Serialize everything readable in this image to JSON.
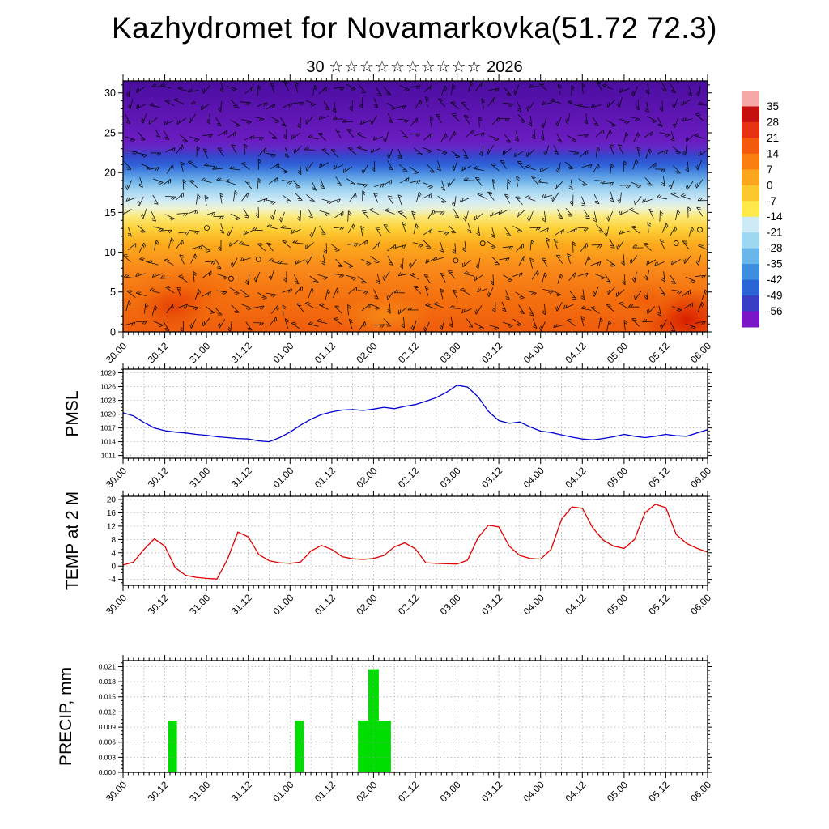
{
  "page": {
    "title": "Kazhydromet for Novamarkovka(51.72 72.3)",
    "subtitle_prefix": "30",
    "subtitle_stars": "☆☆☆☆☆☆☆☆☆☆",
    "subtitle_suffix": "2026"
  },
  "x_axis": {
    "labels": [
      "30.00",
      "30.12",
      "31.00",
      "31.12",
      "01.00",
      "01.12",
      "02.00",
      "02.12",
      "03.00",
      "03.12",
      "04.00",
      "04.12",
      "05.00",
      "05.12",
      "06.00"
    ],
    "major_step_hours": 12,
    "minor_step_hours": 1.5,
    "total_hours": 168
  },
  "chart_data": [
    {
      "type": "heatmap",
      "name": "wind-temperature-profile",
      "description": "vertical profile colored by temperature with wind barbs",
      "ylim": [
        0,
        31.5
      ],
      "yticks": [
        0,
        5,
        10,
        15,
        20,
        25,
        30
      ],
      "profile_heights": [
        0,
        5,
        10,
        13,
        15,
        17,
        19,
        21,
        23,
        25,
        31
      ],
      "profile_values": [
        11,
        6,
        0,
        -5,
        -10,
        -16,
        -24,
        -33,
        -44,
        -50,
        -57
      ],
      "colorbar_ticks": [
        35,
        28,
        21,
        14,
        7,
        0,
        -7,
        -14,
        -21,
        -28,
        -35,
        -42,
        -49,
        -56
      ],
      "colorbar_colors": [
        "#f4a8a8",
        "#c61010",
        "#e63212",
        "#f45a0e",
        "#fa7f10",
        "#fba61c",
        "#fdc82e",
        "#ffe94a",
        "#cdeaf7",
        "#9ed7f2",
        "#6ab6ea",
        "#3e8ee0",
        "#2b64d4",
        "#3a3ec4",
        "#7a16c8"
      ]
    },
    {
      "type": "line",
      "name": "pmsl",
      "ylabel": "PMSL",
      "color": "#0000d0",
      "yticks": [
        1011,
        1014,
        1017,
        1020,
        1023,
        1026,
        1029
      ],
      "ylim": [
        1010.4,
        1029.8
      ],
      "step_hours": 3,
      "values": [
        1020.3,
        1019.6,
        1018.2,
        1017.0,
        1016.4,
        1016.1,
        1015.9,
        1015.6,
        1015.4,
        1015.1,
        1014.9,
        1014.7,
        1014.6,
        1014.2,
        1014.0,
        1014.9,
        1016.1,
        1017.6,
        1018.9,
        1019.9,
        1020.5,
        1020.9,
        1021.0,
        1020.8,
        1021.1,
        1021.5,
        1021.2,
        1021.7,
        1022.1,
        1022.8,
        1023.6,
        1024.8,
        1026.3,
        1025.9,
        1023.8,
        1020.6,
        1018.6,
        1018.0,
        1018.3,
        1017.2,
        1016.3,
        1016.0,
        1015.5,
        1015.0,
        1014.6,
        1014.4,
        1014.7,
        1015.1,
        1015.6,
        1015.2,
        1014.9,
        1015.2,
        1015.6,
        1015.3,
        1015.2,
        1015.9,
        1016.6
      ]
    },
    {
      "type": "line",
      "name": "temp-2m",
      "ylabel": "TEMP at 2 M",
      "color": "#e00000",
      "yticks": [
        -4,
        0,
        4,
        8,
        12,
        16,
        20
      ],
      "ylim": [
        -5.8,
        21
      ],
      "step_hours": 3,
      "values": [
        0.3,
        1.2,
        5.0,
        8.2,
        6.0,
        -0.5,
        -2.8,
        -3.4,
        -3.7,
        -3.9,
        2.0,
        10.2,
        8.8,
        3.5,
        1.6,
        1.0,
        0.8,
        1.2,
        4.5,
        6.2,
        5.0,
        2.8,
        2.2,
        2.0,
        2.3,
        3.2,
        5.8,
        7.0,
        5.2,
        1.0,
        0.8,
        0.7,
        0.6,
        1.8,
        8.5,
        12.3,
        11.8,
        6.0,
        3.2,
        2.3,
        2.1,
        5.0,
        14.0,
        17.8,
        17.4,
        11.5,
        7.8,
        6.0,
        5.3,
        8.0,
        16.0,
        18.6,
        17.6,
        9.5,
        6.8,
        5.3,
        4.2
      ]
    },
    {
      "type": "bar",
      "name": "precip",
      "ylabel": "PRECIP, mm",
      "color": "#00dd00",
      "yticks": [
        0,
        0.003,
        0.006,
        0.009,
        0.012,
        0.015,
        0.018,
        0.021
      ],
      "ytick_labels": [
        "0.000",
        "0.003",
        "0.006",
        "0.009",
        "0.012",
        "0.015",
        "0.018",
        "0.021"
      ],
      "ylim": [
        0,
        0.0222
      ],
      "bars": [
        {
          "start_h": 13.0,
          "width_h": 2.5,
          "value": 0.0103
        },
        {
          "start_h": 49.5,
          "width_h": 2.5,
          "value": 0.0103
        },
        {
          "start_h": 67.5,
          "width_h": 9.5,
          "value": 0.0103
        },
        {
          "start_h": 70.5,
          "width_h": 3.0,
          "value": 0.0205
        }
      ]
    }
  ]
}
